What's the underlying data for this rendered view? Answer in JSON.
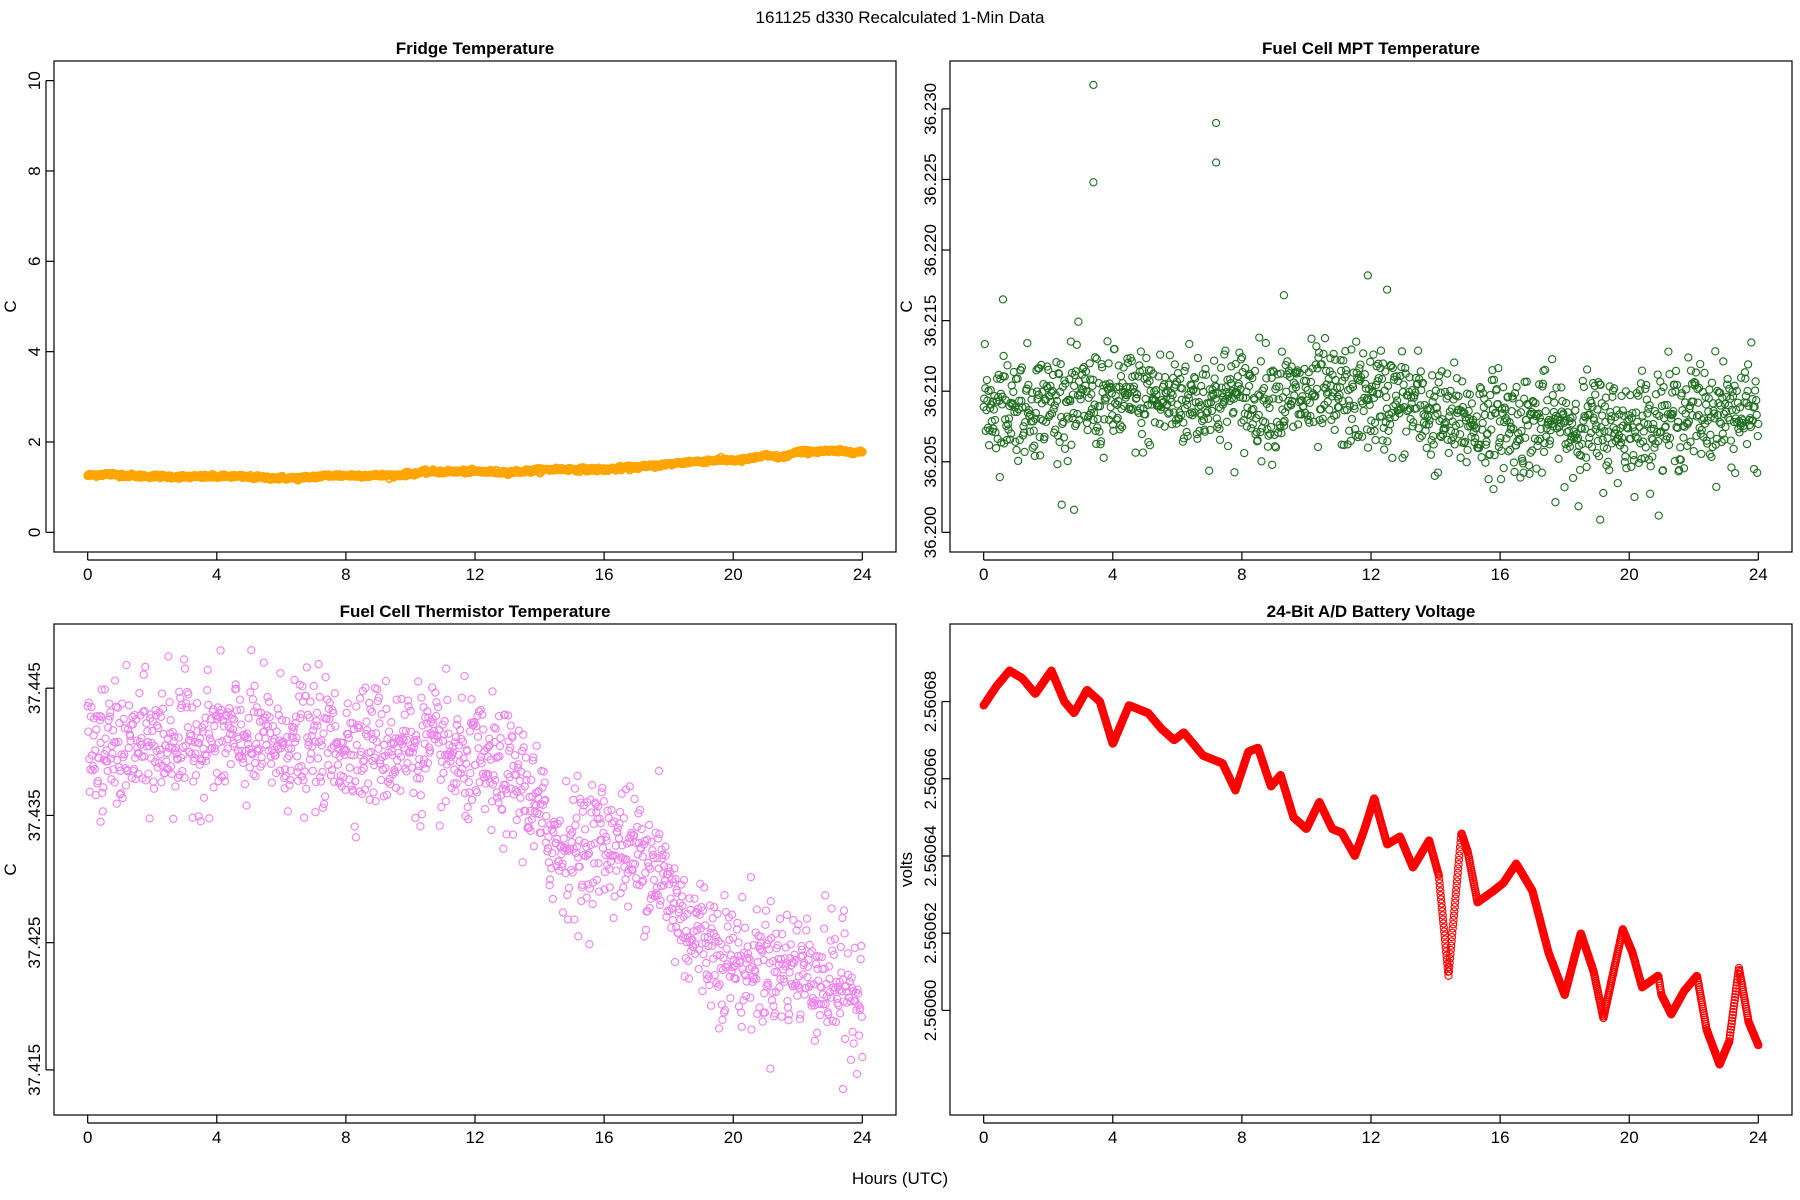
{
  "figure": {
    "main_title": "161125   d330   Recalculated 1-Min Data",
    "shared_xlabel": "Hours (UTC)"
  },
  "chart_data": [
    {
      "id": "fridge",
      "type": "scatter",
      "title": "Fridge Temperature",
      "xlabel": "",
      "ylabel": "C",
      "xlim": [
        0,
        24
      ],
      "ylim": [
        0,
        10
      ],
      "xticks": [
        0,
        4,
        8,
        12,
        16,
        20,
        24
      ],
      "yticks": [
        0,
        2,
        4,
        6,
        8,
        10
      ],
      "ytick_labels": [
        "0",
        "2",
        "4",
        "6",
        "8",
        "10"
      ],
      "color": "#FFA500",
      "marker": "open-circle",
      "trend": [
        [
          0,
          1.26
        ],
        [
          0.6,
          1.29
        ],
        [
          1.5,
          1.25
        ],
        [
          3,
          1.23
        ],
        [
          4.5,
          1.24
        ],
        [
          5.5,
          1.21
        ],
        [
          6.5,
          1.2
        ],
        [
          7.5,
          1.26
        ],
        [
          9.5,
          1.26
        ],
        [
          10.5,
          1.34
        ],
        [
          12,
          1.35
        ],
        [
          13,
          1.33
        ],
        [
          14.5,
          1.4
        ],
        [
          16,
          1.39
        ],
        [
          17.5,
          1.47
        ],
        [
          18.5,
          1.55
        ],
        [
          19.5,
          1.6
        ],
        [
          20.3,
          1.6
        ],
        [
          21,
          1.7
        ],
        [
          21.5,
          1.66
        ],
        [
          22,
          1.78
        ],
        [
          23,
          1.8
        ],
        [
          24,
          1.78
        ]
      ],
      "noise": 0.02,
      "outliers": []
    },
    {
      "id": "mpt",
      "type": "scatter",
      "title": "Fuel Cell MPT Temperature",
      "xlabel": "",
      "ylabel": "C",
      "xlim": [
        0,
        24
      ],
      "ylim": [
        36.2,
        36.232
      ],
      "xticks": [
        0,
        4,
        8,
        12,
        16,
        20,
        24
      ],
      "yticks": [
        36.2,
        36.205,
        36.21,
        36.215,
        36.22,
        36.225,
        36.23
      ],
      "ytick_labels": [
        "36.200",
        "36.205",
        "36.210",
        "36.215",
        "36.220",
        "36.225",
        "36.230"
      ],
      "color": "#1E6E1E",
      "marker": "open-circle",
      "trend": [
        [
          0,
          36.209
        ],
        [
          6,
          36.2095
        ],
        [
          10,
          36.2095
        ],
        [
          12,
          36.2095
        ],
        [
          13.5,
          36.209
        ],
        [
          14,
          36.208
        ],
        [
          18,
          36.2075
        ],
        [
          20,
          36.2075
        ],
        [
          22,
          36.2085
        ],
        [
          24,
          36.2085
        ]
      ],
      "noise": 0.0018,
      "outliers": [
        [
          3.4,
          36.2317
        ],
        [
          3.4,
          36.2248
        ],
        [
          7.2,
          36.229
        ],
        [
          7.2,
          36.2262
        ],
        [
          11.9,
          36.2182
        ],
        [
          12.5,
          36.2172
        ],
        [
          2.8,
          36.2016
        ],
        [
          19.1,
          36.2009
        ],
        [
          9.3,
          36.2168
        ],
        [
          0.6,
          36.2165
        ]
      ]
    },
    {
      "id": "thermistor",
      "type": "scatter",
      "title": "Fuel Cell Thermistor Temperature",
      "xlabel": "",
      "ylabel": "C",
      "xlim": [
        0,
        24
      ],
      "ylim": [
        37.413,
        37.4485
      ],
      "xticks": [
        0,
        4,
        8,
        12,
        16,
        20,
        24
      ],
      "yticks": [
        37.415,
        37.425,
        37.435,
        37.445
      ],
      "ytick_labels": [
        "37.415",
        "37.425",
        "37.435",
        "37.445"
      ],
      "color": "#EE82EE",
      "marker": "open-circle",
      "trend": [
        [
          0,
          37.44
        ],
        [
          4,
          37.441
        ],
        [
          8,
          37.4405
        ],
        [
          10,
          37.4405
        ],
        [
          12,
          37.439
        ],
        [
          13.5,
          37.4375
        ],
        [
          14.5,
          37.4325
        ],
        [
          16,
          37.433
        ],
        [
          17.5,
          37.4315
        ],
        [
          18.5,
          37.4265
        ],
        [
          20,
          37.4235
        ],
        [
          22,
          37.423
        ],
        [
          24,
          37.421
        ]
      ],
      "noise": 0.0024,
      "outliers": [
        [
          2.5,
          37.4475
        ],
        [
          23.4,
          37.4135
        ],
        [
          0.4,
          37.4345
        ],
        [
          15.2,
          37.4255
        ],
        [
          17.7,
          37.4385
        ]
      ]
    },
    {
      "id": "battery",
      "type": "line",
      "title": "24-Bit A/D Battery Voltage",
      "xlabel": "",
      "ylabel": "volts",
      "xlim": [
        0,
        24
      ],
      "ylim": [
        2.560578,
        2.560695
      ],
      "xticks": [
        0,
        4,
        8,
        12,
        16,
        20,
        24
      ],
      "yticks": [
        2.5606,
        2.56062,
        2.56064,
        2.56066,
        2.56068
      ],
      "ytick_labels": [
        "2.56060",
        "2.56062",
        "2.56064",
        "2.56066",
        "2.56068"
      ],
      "color": "#FF0000",
      "marker": "open-circle",
      "points": [
        [
          0,
          2.560679
        ],
        [
          0.4,
          2.560684
        ],
        [
          0.8,
          2.560688
        ],
        [
          1.2,
          2.560686
        ],
        [
          1.6,
          2.560682
        ],
        [
          2.1,
          2.560688
        ],
        [
          2.5,
          2.56068
        ],
        [
          2.8,
          2.560677
        ],
        [
          3.2,
          2.560683
        ],
        [
          3.6,
          2.56068
        ],
        [
          4,
          2.560669
        ],
        [
          4.5,
          2.560679
        ],
        [
          5.1,
          2.560677
        ],
        [
          5.5,
          2.560673
        ],
        [
          5.9,
          2.56067
        ],
        [
          6.2,
          2.560672
        ],
        [
          6.8,
          2.560666
        ],
        [
          7.4,
          2.560664
        ],
        [
          7.8,
          2.560657
        ],
        [
          8.2,
          2.560667
        ],
        [
          8.5,
          2.560668
        ],
        [
          8.9,
          2.560658
        ],
        [
          9.2,
          2.560661
        ],
        [
          9.6,
          2.56065
        ],
        [
          10,
          2.560647
        ],
        [
          10.4,
          2.560654
        ],
        [
          10.8,
          2.560647
        ],
        [
          11.1,
          2.560646
        ],
        [
          11.5,
          2.56064
        ],
        [
          11.8,
          2.560647
        ],
        [
          12.1,
          2.560655
        ],
        [
          12.5,
          2.560643
        ],
        [
          12.9,
          2.560645
        ],
        [
          13.3,
          2.560637
        ],
        [
          13.8,
          2.560644
        ],
        [
          14.1,
          2.560635
        ],
        [
          14.4,
          2.560609
        ],
        [
          14.8,
          2.560646
        ],
        [
          15,
          2.560641
        ],
        [
          15.3,
          2.560628
        ],
        [
          15.8,
          2.560631
        ],
        [
          16.1,
          2.560633
        ],
        [
          16.5,
          2.560638
        ],
        [
          17,
          2.560631
        ],
        [
          17.5,
          2.560615
        ],
        [
          18,
          2.560604
        ],
        [
          18.5,
          2.56062
        ],
        [
          18.9,
          2.56061
        ],
        [
          19.2,
          2.560598
        ],
        [
          19.8,
          2.560621
        ],
        [
          20.1,
          2.560615
        ],
        [
          20.4,
          2.560606
        ],
        [
          20.9,
          2.560609
        ],
        [
          21,
          2.560604
        ],
        [
          21.3,
          2.560599
        ],
        [
          21.7,
          2.560605
        ],
        [
          22.1,
          2.560609
        ],
        [
          22.4,
          2.560595
        ],
        [
          22.8,
          2.560586
        ],
        [
          23.1,
          2.560592
        ],
        [
          23.4,
          2.560611
        ],
        [
          23.7,
          2.560597
        ],
        [
          24,
          2.560591
        ]
      ],
      "interp_step": 0.012
    }
  ]
}
